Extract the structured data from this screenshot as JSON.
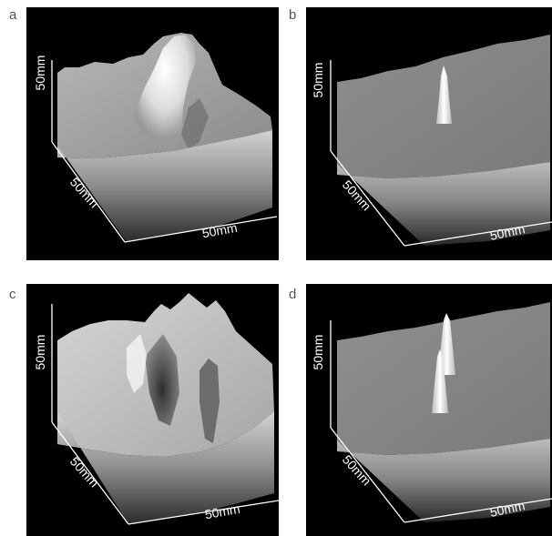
{
  "figure": {
    "panels": [
      {
        "letter": "a",
        "height_label": "50mm",
        "depth_label": "50mm",
        "width_label": "50mm"
      },
      {
        "letter": "b",
        "height_label": "50mm",
        "depth_label": "50mm",
        "width_label": "50mm"
      },
      {
        "letter": "c",
        "height_label": "50mm",
        "depth_label": "50mm",
        "width_label": "50mm"
      },
      {
        "letter": "d",
        "height_label": "50mm",
        "depth_label": "50mm",
        "width_label": "50mm"
      }
    ]
  }
}
